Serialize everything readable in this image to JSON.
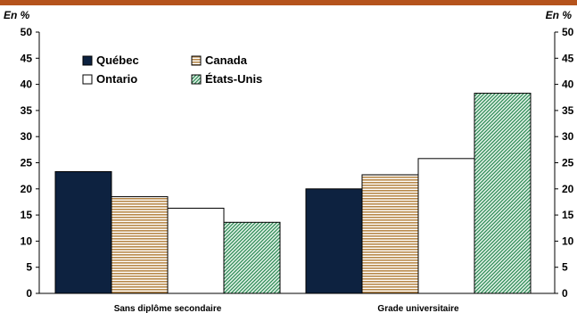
{
  "chart_data": {
    "type": "bar",
    "y_unit_label": "En %",
    "categories": [
      "Sans diplôme secondaire",
      "Grade universitaire"
    ],
    "series": [
      {
        "name": "Québec",
        "values": [
          23.3,
          20.0
        ],
        "color": "#0d2240",
        "pattern": "solid"
      },
      {
        "name": "Canada",
        "values": [
          18.5,
          22.7
        ],
        "color": "#c8a060",
        "pattern": "horizontal-lines"
      },
      {
        "name": "Ontario",
        "values": [
          16.3,
          25.8
        ],
        "color": "#ffffff",
        "pattern": "none"
      },
      {
        "name": "États-Unis",
        "values": [
          13.6,
          38.3
        ],
        "color": "#2e8b57",
        "pattern": "diagonal-lines"
      }
    ],
    "ylim": [
      0,
      50
    ],
    "yticks": [
      0,
      5,
      10,
      15,
      20,
      25,
      30,
      35,
      40,
      45,
      50
    ],
    "grid": false,
    "legend_position": "top-left"
  },
  "colors": {
    "top_bar": "#b5531c",
    "axis": "#000000"
  }
}
